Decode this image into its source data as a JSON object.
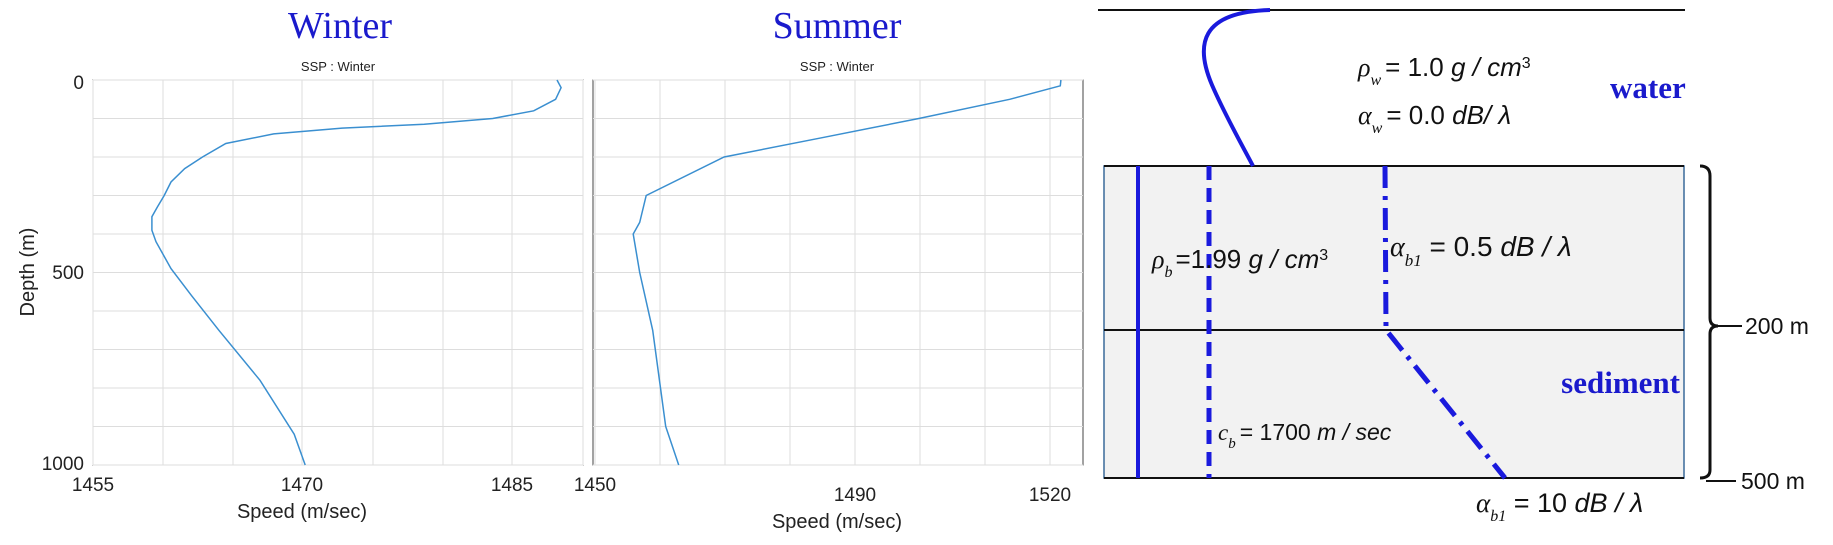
{
  "charts": {
    "winter": {
      "heading": "Winter",
      "title": "SSP : Winter",
      "xlabel": "Speed (m/sec)",
      "ylabel": "Depth (m)",
      "xticks": [
        "1455",
        "1470",
        "1485"
      ],
      "yticks": [
        "0",
        "500",
        "1000"
      ]
    },
    "summer": {
      "heading": "Summer",
      "title": "SSP : Winter",
      "xlabel": "Speed (m/sec)",
      "xticks": [
        "1450",
        "1490",
        "1520"
      ]
    }
  },
  "chart_data": [
    {
      "type": "line",
      "title": "SSP : Winter",
      "xlabel": "Speed (m/sec)",
      "ylabel": "Depth (m)",
      "xlim": [
        1451.8,
        1487.6
      ],
      "ylim": [
        1000,
        0
      ],
      "grid": true,
      "series": [
        {
          "color": "#3a8fd0",
          "x": [
            1485.7,
            1486.0,
            1485.6,
            1484.0,
            1481.0,
            1476.0,
            1470.0,
            1465.0,
            1461.5,
            1459.8,
            1458.5,
            1457.5,
            1457.0,
            1456.5,
            1456.1,
            1456.1,
            1456.4,
            1457.5,
            1459.0,
            1461.0,
            1464.0,
            1466.5,
            1467.3
          ],
          "y": [
            0,
            20,
            50,
            80,
            100,
            115,
            125,
            140,
            165,
            200,
            230,
            265,
            300,
            330,
            355,
            390,
            420,
            490,
            560,
            650,
            780,
            920,
            1000
          ]
        }
      ]
    },
    {
      "type": "line",
      "title": "SSP : Winter",
      "xlabel": "Speed (m/sec)",
      "ylabel": "",
      "xlim": [
        1449.8,
        1525.3
      ],
      "ylim": [
        1000,
        0
      ],
      "grid": true,
      "series": [
        {
          "color": "#3a8fd0",
          "x": [
            1521.9,
            1521.8,
            1514.0,
            1500.0,
            1485.0,
            1470.0,
            1458.0,
            1457.0,
            1456.0,
            1457.0,
            1459.0,
            1461.0,
            1463.0
          ],
          "y": [
            0,
            15,
            50,
            100,
            150,
            200,
            300,
            370,
            400,
            500,
            650,
            900,
            1000
          ]
        }
      ]
    }
  ],
  "diagram": {
    "water_density": {
      "lhs": "ρ",
      "sub": "w",
      "rhs": "= 1.0 ",
      "unit1": "g / cm",
      "sup": "3"
    },
    "water_attenuation": {
      "lhs": "α",
      "sub": "w",
      "rhs": "= 0.0 ",
      "unit": "dB/ λ"
    },
    "water_label": "water",
    "sediment_density": {
      "lhs": "ρ",
      "sub": "b",
      "rhs": "=1.99 ",
      "unit1": "g / cm",
      "sup": "3"
    },
    "sediment_attenuation_top": {
      "lhs": "α",
      "sub": "b1",
      "rhs": " = 0.5 ",
      "unit": "dB / λ"
    },
    "sediment_speed": {
      "lhs": "c",
      "sub": "b",
      "rhs": "= 1700  ",
      "unit": "m / sec"
    },
    "sediment_attenuation_bottom": {
      "lhs": "α",
      "sub": "b1",
      "rhs": " = 10 ",
      "unit": "dB / λ"
    },
    "sediment_label": "sediment",
    "depth_200": "200 m",
    "depth_500": "500 m"
  }
}
